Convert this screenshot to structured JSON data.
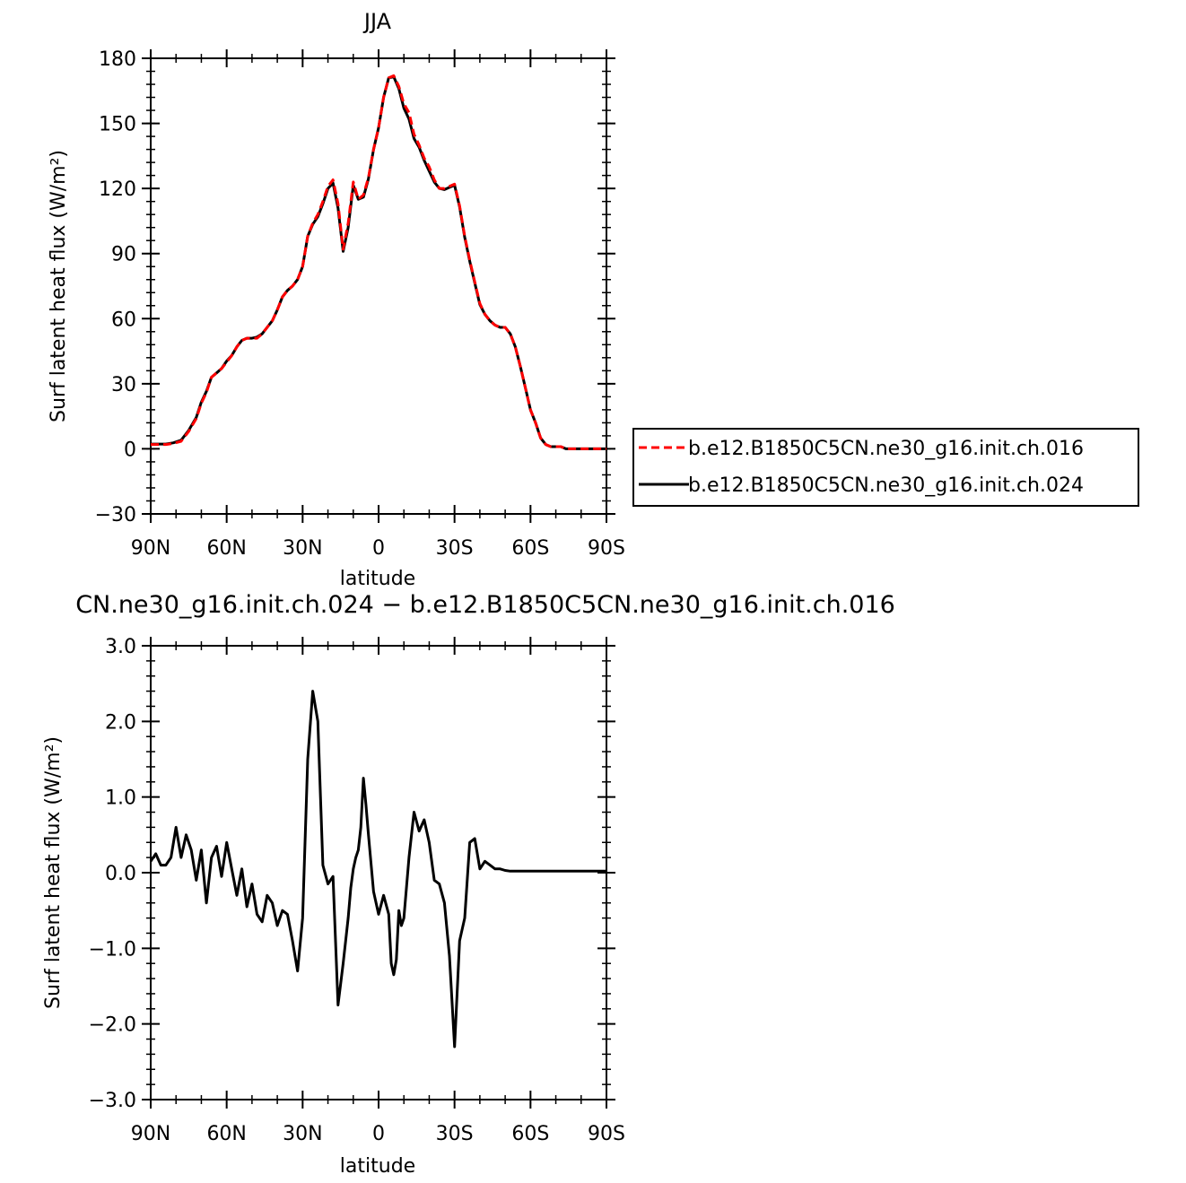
{
  "chart_data": [
    {
      "type": "line",
      "title": "JJA",
      "xlabel": "latitude",
      "ylabel": "Surf latent heat flux (W/m²)",
      "ylim": [
        -30,
        180
      ],
      "yticks": [
        -30,
        0,
        30,
        60,
        90,
        120,
        150,
        180
      ],
      "ytick_labels": [
        "−30",
        "0",
        "30",
        "60",
        "90",
        "120",
        "150",
        "180"
      ],
      "xlim": [
        90,
        -90
      ],
      "xticks": [
        90,
        60,
        30,
        0,
        -30,
        -60,
        -90
      ],
      "xtick_labels": [
        "90N",
        "60N",
        "30N",
        "0",
        "30S",
        "60S",
        "90S"
      ],
      "grid": false,
      "legend": {
        "position": "right",
        "entries": [
          "b.e12.B1850C5CN.ne30_g16.init.ch.016",
          "b.e12.B1850C5CN.ne30_g16.init.ch.024"
        ]
      },
      "series": [
        {
          "name": "b.e12.B1850C5CN.ne30_g16.init.ch.016",
          "color": "#ff0000",
          "dash": "dashed",
          "x": [
            90,
            87,
            84,
            81,
            78,
            75,
            72,
            70,
            68,
            66,
            64,
            62,
            60,
            58,
            56,
            54,
            52,
            50,
            48,
            46,
            44,
            42,
            40,
            38,
            36,
            34,
            32,
            30,
            28,
            26,
            24,
            22,
            20,
            18,
            16,
            14,
            12,
            10,
            8,
            6,
            4,
            2,
            0,
            -2,
            -4,
            -6,
            -8,
            -10,
            -12,
            -14,
            -16,
            -18,
            -20,
            -22,
            -24,
            -26,
            -28,
            -30,
            -32,
            -34,
            -36,
            -38,
            -40,
            -42,
            -44,
            -46,
            -48,
            -50,
            -52,
            -54,
            -56,
            -58,
            -60,
            -62,
            -64,
            -66,
            -68,
            -70,
            -72,
            -74,
            -76,
            -78,
            -80,
            -84,
            -90
          ],
          "y": [
            2,
            2,
            2,
            2.5,
            3.5,
            8,
            14,
            21,
            26,
            33,
            35,
            37,
            40,
            43,
            47,
            50,
            51,
            51,
            51,
            53,
            56,
            59,
            64,
            70,
            73,
            75,
            78,
            84,
            98,
            104,
            108,
            114,
            121,
            124,
            113,
            92,
            104,
            123,
            115,
            117,
            125,
            138,
            148,
            162,
            171,
            172,
            167,
            159,
            155,
            145,
            140,
            134,
            130,
            124,
            120,
            120,
            121,
            122,
            112,
            98,
            87,
            77,
            67,
            62,
            59,
            57,
            56,
            56,
            53,
            47,
            38,
            28,
            18,
            12,
            5,
            2,
            1,
            1,
            1,
            0,
            0,
            0,
            0,
            0,
            0
          ]
        },
        {
          "name": "b.e12.B1850C5CN.ne30_g16.init.ch.024",
          "color": "#000000",
          "dash": "solid",
          "x": [
            90,
            87,
            84,
            81,
            78,
            75,
            72,
            70,
            68,
            66,
            64,
            62,
            60,
            58,
            56,
            54,
            52,
            50,
            48,
            46,
            44,
            42,
            40,
            38,
            36,
            34,
            32,
            30,
            28,
            26,
            24,
            22,
            20,
            18,
            16,
            14,
            12,
            10,
            8,
            6,
            4,
            2,
            0,
            -2,
            -4,
            -6,
            -8,
            -10,
            -12,
            -14,
            -16,
            -18,
            -20,
            -22,
            -24,
            -26,
            -28,
            -30,
            -32,
            -34,
            -36,
            -38,
            -40,
            -42,
            -44,
            -46,
            -48,
            -50,
            -52,
            -54,
            -56,
            -58,
            -60,
            -62,
            -64,
            -66,
            -68,
            -70,
            -72,
            -74,
            -76,
            -78,
            -80,
            -84,
            -90
          ],
          "y": [
            2.2,
            2.2,
            2.2,
            2.8,
            4,
            8.5,
            14.5,
            21.5,
            26.5,
            33,
            35,
            37,
            40.5,
            43,
            47,
            50,
            51,
            51,
            51.5,
            53,
            56,
            59,
            64,
            70,
            73,
            75,
            78,
            84,
            98,
            103.5,
            107,
            113,
            120,
            122.5,
            111,
            91,
            102,
            121.5,
            115,
            116,
            124.5,
            138,
            148,
            162,
            171,
            171.5,
            166,
            157,
            152,
            143,
            139,
            133,
            128,
            123,
            120,
            119.5,
            120.5,
            121.5,
            111.5,
            97.5,
            86.5,
            76.5,
            66.5,
            62,
            59,
            57,
            56,
            56,
            53,
            47,
            38,
            28,
            18,
            12,
            5,
            2,
            1,
            1,
            1,
            0,
            0,
            0,
            0,
            0,
            0
          ]
        }
      ]
    },
    {
      "type": "line",
      "title": "CN.ne30_g16.init.ch.024 − b.e12.B1850C5CN.ne30_g16.init.ch.016",
      "xlabel": "latitude",
      "ylabel": "Surf latent heat flux (W/m²)",
      "ylim": [
        -3,
        3
      ],
      "yticks": [
        -3,
        -2,
        -1,
        0,
        1,
        2,
        3
      ],
      "ytick_labels": [
        "−3.0",
        "−2.0",
        "−1.0",
        "0.0",
        "1.0",
        "2.0",
        "3.0"
      ],
      "xlim": [
        90,
        -90
      ],
      "xticks": [
        90,
        60,
        30,
        0,
        -30,
        -60,
        -90
      ],
      "xtick_labels": [
        "90N",
        "60N",
        "30N",
        "0",
        "30S",
        "60S",
        "90S"
      ],
      "grid": false,
      "series": [
        {
          "color": "#000000",
          "dash": "solid",
          "x": [
            90,
            88,
            86,
            84,
            82,
            80,
            78,
            76,
            74,
            72,
            70,
            68,
            66,
            64,
            62,
            60,
            58,
            56,
            54,
            52,
            50,
            48,
            46,
            44,
            42,
            40,
            38,
            36,
            34,
            32,
            30,
            28,
            26,
            24,
            22,
            20,
            18,
            16,
            14,
            13,
            12,
            11,
            10,
            9,
            8,
            7,
            6,
            5,
            4,
            2,
            0,
            -2,
            -4,
            -5,
            -6,
            -7,
            -8,
            -9,
            -10,
            -12,
            -14,
            -16,
            -18,
            -20,
            -22,
            -24,
            -26,
            -28,
            -30,
            -32,
            -34,
            -36,
            -38,
            -40,
            -42,
            -44,
            -46,
            -48,
            -50,
            -52,
            -54,
            -56,
            -58,
            -60,
            -62,
            -64,
            -66,
            -68,
            -70,
            -72,
            -74,
            -76,
            -78,
            -80,
            -82,
            -84,
            -86,
            -88,
            -90
          ],
          "y": [
            0.15,
            0.25,
            0.1,
            0.1,
            0.2,
            0.6,
            0.2,
            0.5,
            0.3,
            -0.1,
            0.3,
            -0.4,
            0.2,
            0.35,
            -0.05,
            0.4,
            0.05,
            -0.3,
            0.05,
            -0.45,
            -0.15,
            -0.55,
            -0.65,
            -0.3,
            -0.4,
            -0.7,
            -0.5,
            -0.55,
            -0.9,
            -1.3,
            -0.6,
            1.5,
            2.4,
            2.0,
            0.1,
            -0.15,
            -0.05,
            -1.75,
            -1.2,
            -0.9,
            -0.6,
            -0.2,
            0.05,
            0.2,
            0.3,
            0.6,
            1.25,
            0.9,
            0.5,
            -0.25,
            -0.55,
            -0.3,
            -0.55,
            -1.2,
            -1.35,
            -1.15,
            -0.5,
            -0.7,
            -0.6,
            0.2,
            0.8,
            0.55,
            0.7,
            0.4,
            -0.1,
            -0.15,
            -0.4,
            -1.1,
            -2.3,
            -0.9,
            -0.6,
            0.4,
            0.45,
            0.05,
            0.15,
            0.1,
            0.05,
            0.05,
            0.03,
            0.02,
            0.02,
            0.02,
            0.02,
            0.02,
            0.02,
            0.02,
            0.02,
            0.02,
            0.02,
            0.02,
            0.02,
            0.02,
            0.02,
            0.02,
            0.02,
            0.02,
            0.02,
            0.02,
            0.02
          ]
        }
      ]
    }
  ]
}
